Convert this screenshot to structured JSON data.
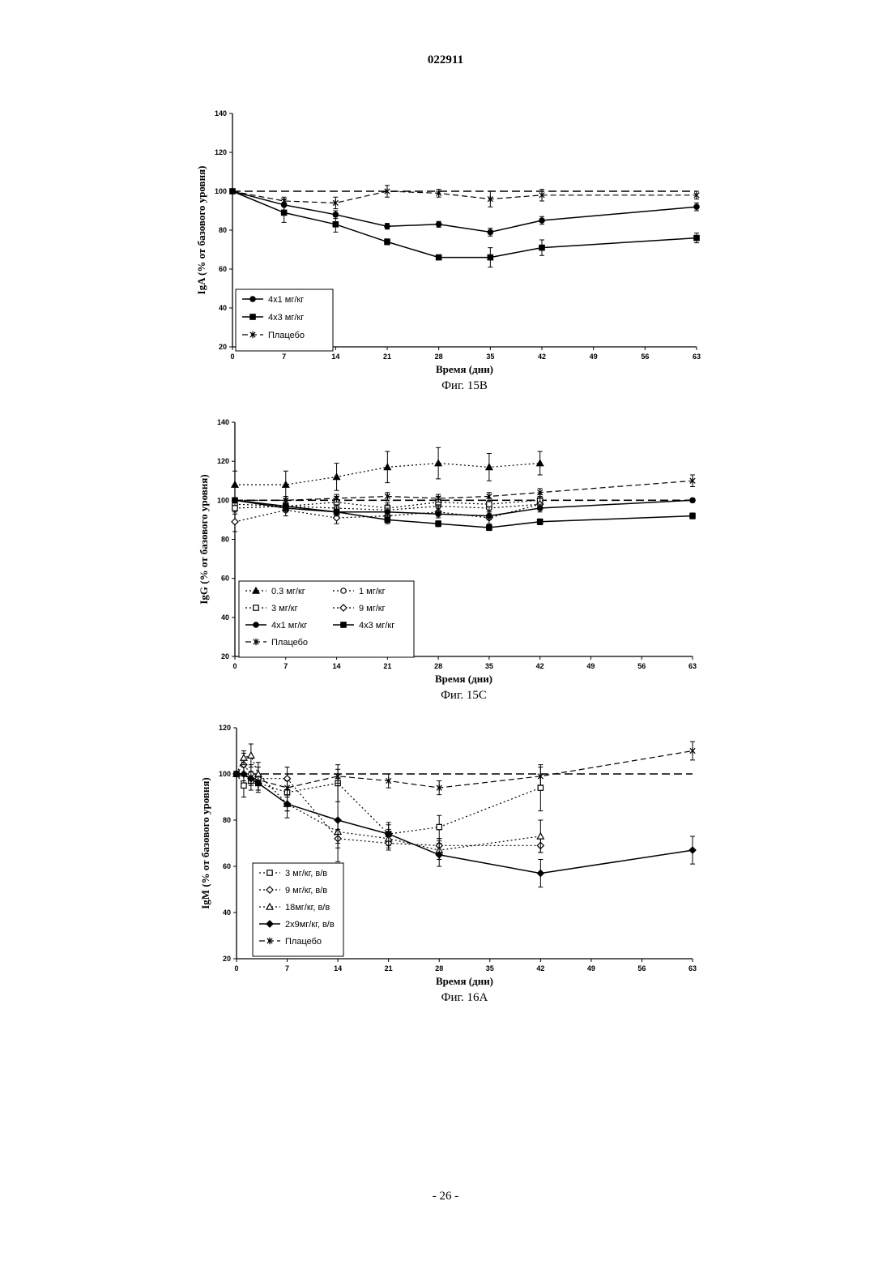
{
  "page": {
    "doc_number": "022911",
    "page_number": "- 26 -"
  },
  "chart_data": [
    {
      "type": "line",
      "caption": "Фиг. 15В",
      "xlabel": "Время (дни)",
      "ylabel": "IgA (% от базового уровня)",
      "xlim": [
        0,
        63
      ],
      "ylim": [
        20,
        140
      ],
      "xticks": [
        0,
        7,
        14,
        21,
        28,
        35,
        42,
        49,
        56,
        63
      ],
      "yticks": [
        20,
        40,
        60,
        80,
        100,
        120,
        140
      ],
      "grid": false,
      "legend_position": "bottom-left",
      "reference_line": 100,
      "series": [
        {
          "name": "4x1 мг/кг",
          "marker": "circle",
          "style": "solid",
          "x": [
            0,
            7,
            14,
            21,
            28,
            35,
            42,
            63
          ],
          "y": [
            100,
            93,
            88,
            82,
            83,
            79,
            85,
            92
          ],
          "err": [
            0,
            3,
            2,
            1.5,
            1.5,
            2,
            2,
            2
          ]
        },
        {
          "name": "4x3 мг/кг",
          "marker": "square",
          "style": "solid",
          "x": [
            0,
            7,
            14,
            21,
            28,
            35,
            42,
            63
          ],
          "y": [
            100,
            89,
            83,
            74,
            66,
            66,
            71,
            76
          ],
          "err": [
            0,
            5,
            4,
            1.5,
            1,
            5,
            4,
            2.5
          ]
        },
        {
          "name": "Плацебо",
          "marker": "x",
          "style": "dashed",
          "x": [
            0,
            7,
            14,
            21,
            28,
            35,
            42,
            63
          ],
          "y": [
            100,
            95,
            94,
            100,
            99,
            96,
            98,
            98
          ],
          "err": [
            0,
            2,
            3,
            3,
            2,
            4,
            3,
            2
          ]
        }
      ]
    },
    {
      "type": "line",
      "caption": "Фиг. 15С",
      "xlabel": "Время (дни)",
      "ylabel": "IgG (% от базового уровня)",
      "xlim": [
        0,
        63
      ],
      "ylim": [
        20,
        140
      ],
      "xticks": [
        0,
        7,
        14,
        21,
        28,
        35,
        42,
        49,
        56,
        63
      ],
      "yticks": [
        20,
        40,
        60,
        80,
        100,
        120,
        140
      ],
      "grid": false,
      "legend_position": "bottom-left",
      "reference_line": 100,
      "series": [
        {
          "name": "0.3 мг/кг",
          "marker": "triangle",
          "style": "dotted",
          "x": [
            0,
            7,
            14,
            21,
            28,
            35,
            42
          ],
          "y": [
            108,
            108,
            112,
            117,
            119,
            117,
            119
          ],
          "err": [
            7,
            7,
            7,
            8,
            8,
            7,
            6
          ]
        },
        {
          "name": "1 мг/кг",
          "marker": "circle-open",
          "style": "dotted",
          "x": [
            0,
            7,
            14,
            21,
            28,
            35,
            42
          ],
          "y": [
            98,
            97,
            96,
            95,
            97,
            96,
            98
          ],
          "err": [
            3,
            3,
            3,
            3,
            3,
            3,
            3
          ]
        },
        {
          "name": "3 мг/кг",
          "marker": "square-open",
          "style": "dotted",
          "x": [
            0,
            7,
            14,
            21,
            28,
            35,
            42
          ],
          "y": [
            96,
            97,
            99,
            96,
            99,
            98,
            100
          ],
          "err": [
            3,
            3,
            3,
            3,
            3,
            3,
            3
          ]
        },
        {
          "name": "9 мг/кг",
          "marker": "diamond-open",
          "style": "dotted",
          "x": [
            0,
            7,
            14,
            21,
            28,
            35,
            42
          ],
          "y": [
            89,
            95,
            91,
            92,
            94,
            91,
            98
          ],
          "err": [
            5,
            3,
            3,
            3,
            3,
            3,
            3
          ]
        },
        {
          "name": "4x1 мг/кг",
          "marker": "circle",
          "style": "solid",
          "x": [
            0,
            7,
            14,
            21,
            28,
            35,
            42,
            63
          ],
          "y": [
            100,
            97,
            94,
            94,
            93,
            92,
            96,
            100
          ],
          "err": [
            0,
            2,
            2,
            2,
            2,
            2,
            2,
            1
          ]
        },
        {
          "name": "4x3 мг/кг",
          "marker": "square",
          "style": "solid",
          "x": [
            0,
            7,
            14,
            21,
            28,
            35,
            42,
            63
          ],
          "y": [
            100,
            96,
            94,
            90,
            88,
            86,
            89,
            92
          ],
          "err": [
            0,
            2,
            2,
            2,
            1.5,
            1.5,
            1.5,
            1.5
          ]
        },
        {
          "name": "Плацебо",
          "marker": "x",
          "style": "dashed",
          "x": [
            0,
            7,
            14,
            21,
            28,
            35,
            42,
            63
          ],
          "y": [
            100,
            100,
            101,
            102,
            101,
            102,
            104,
            110
          ],
          "err": [
            0,
            2,
            2,
            2,
            2,
            2,
            2,
            3
          ]
        }
      ]
    },
    {
      "type": "line",
      "caption": "Фиг. 16А",
      "xlabel": "Время (дни)",
      "ylabel": "IgM (% от базового уровня)",
      "xlim": [
        0,
        63
      ],
      "ylim": [
        20,
        120
      ],
      "xticks": [
        0,
        7,
        14,
        21,
        28,
        35,
        42,
        49,
        56,
        63
      ],
      "xtick_labels": [
        "0",
        "7",
        "14",
        "21",
        "28",
        "35",
        "42",
        "49",
        "56",
        "63"
      ],
      "yticks": [
        20,
        40,
        60,
        80,
        100,
        120
      ],
      "grid": false,
      "legend_position": "bottom-left",
      "reference_line": 100,
      "series": [
        {
          "name": "3 мг/кг, в/в",
          "marker": "square-open",
          "style": "dotted",
          "x": [
            0,
            1,
            2,
            3,
            7,
            14,
            21,
            28,
            42
          ],
          "y": [
            100,
            95,
            97,
            96,
            92,
            96,
            74,
            77,
            94
          ],
          "err": [
            0,
            5,
            4,
            4,
            8,
            8,
            4,
            5,
            10
          ]
        },
        {
          "name": "9 мг/кг, в/в",
          "marker": "diamond-open",
          "style": "dotted",
          "x": [
            0,
            1,
            2,
            3,
            7,
            14,
            21,
            28,
            42
          ],
          "y": [
            100,
            104,
            100,
            98,
            98,
            72,
            70,
            69,
            69
          ],
          "err": [
            0,
            5,
            4,
            5,
            5,
            4,
            3,
            3,
            3
          ]
        },
        {
          "name": "18мг/кг, в/в",
          "marker": "triangle-open",
          "style": "dotted",
          "x": [
            0,
            1,
            2,
            3,
            7,
            14,
            21,
            28,
            42
          ],
          "y": [
            100,
            107,
            108,
            100,
            87,
            75,
            72,
            67,
            73
          ],
          "err": [
            0,
            3,
            5,
            5,
            6,
            5,
            4,
            4,
            7
          ]
        },
        {
          "name": "2x9мг/кг, в/в",
          "marker": "diamond",
          "style": "solid",
          "x": [
            0,
            1,
            2,
            3,
            7,
            14,
            21,
            28,
            42,
            63
          ],
          "y": [
            100,
            100,
            98,
            96,
            87,
            80,
            74,
            65,
            57,
            67
          ],
          "err": [
            0,
            3,
            3,
            3,
            3,
            18,
            5,
            5,
            6,
            6
          ]
        },
        {
          "name": "Плацебо",
          "marker": "x",
          "style": "dashed",
          "x": [
            0,
            7,
            14,
            21,
            28,
            42,
            63
          ],
          "y": [
            100,
            94,
            99,
            97,
            94,
            99,
            110
          ],
          "err": [
            0,
            3,
            3,
            3,
            3,
            4,
            4
          ]
        }
      ]
    }
  ]
}
